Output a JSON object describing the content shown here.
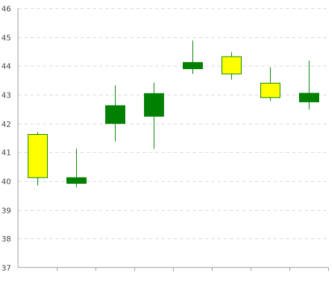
{
  "chart_data": {
    "type": "candlestick",
    "title": "",
    "xlabel": "",
    "ylabel": "",
    "ylim": [
      37,
      46
    ],
    "yticks": [
      37,
      38,
      39,
      40,
      41,
      42,
      43,
      44,
      45,
      46
    ],
    "grid": true,
    "colors": {
      "increase": "#ffff00",
      "decrease": "#008000",
      "wick": "#008000",
      "outline": "#008000"
    },
    "candles": [
      {
        "open": 40.12,
        "high": 41.7,
        "low": 39.85,
        "close": 41.62
      },
      {
        "open": 40.12,
        "high": 41.13,
        "low": 39.78,
        "close": 39.92
      },
      {
        "open": 42.62,
        "high": 43.32,
        "low": 41.38,
        "close": 42.0
      },
      {
        "open": 43.04,
        "high": 43.42,
        "low": 41.12,
        "close": 42.25
      },
      {
        "open": 44.12,
        "high": 44.88,
        "low": 43.72,
        "close": 43.9
      },
      {
        "open": 43.72,
        "high": 44.48,
        "low": 43.52,
        "close": 44.32
      },
      {
        "open": 42.9,
        "high": 43.95,
        "low": 42.78,
        "close": 43.4
      },
      {
        "open": 43.05,
        "high": 44.18,
        "low": 42.48,
        "close": 42.75
      }
    ]
  }
}
